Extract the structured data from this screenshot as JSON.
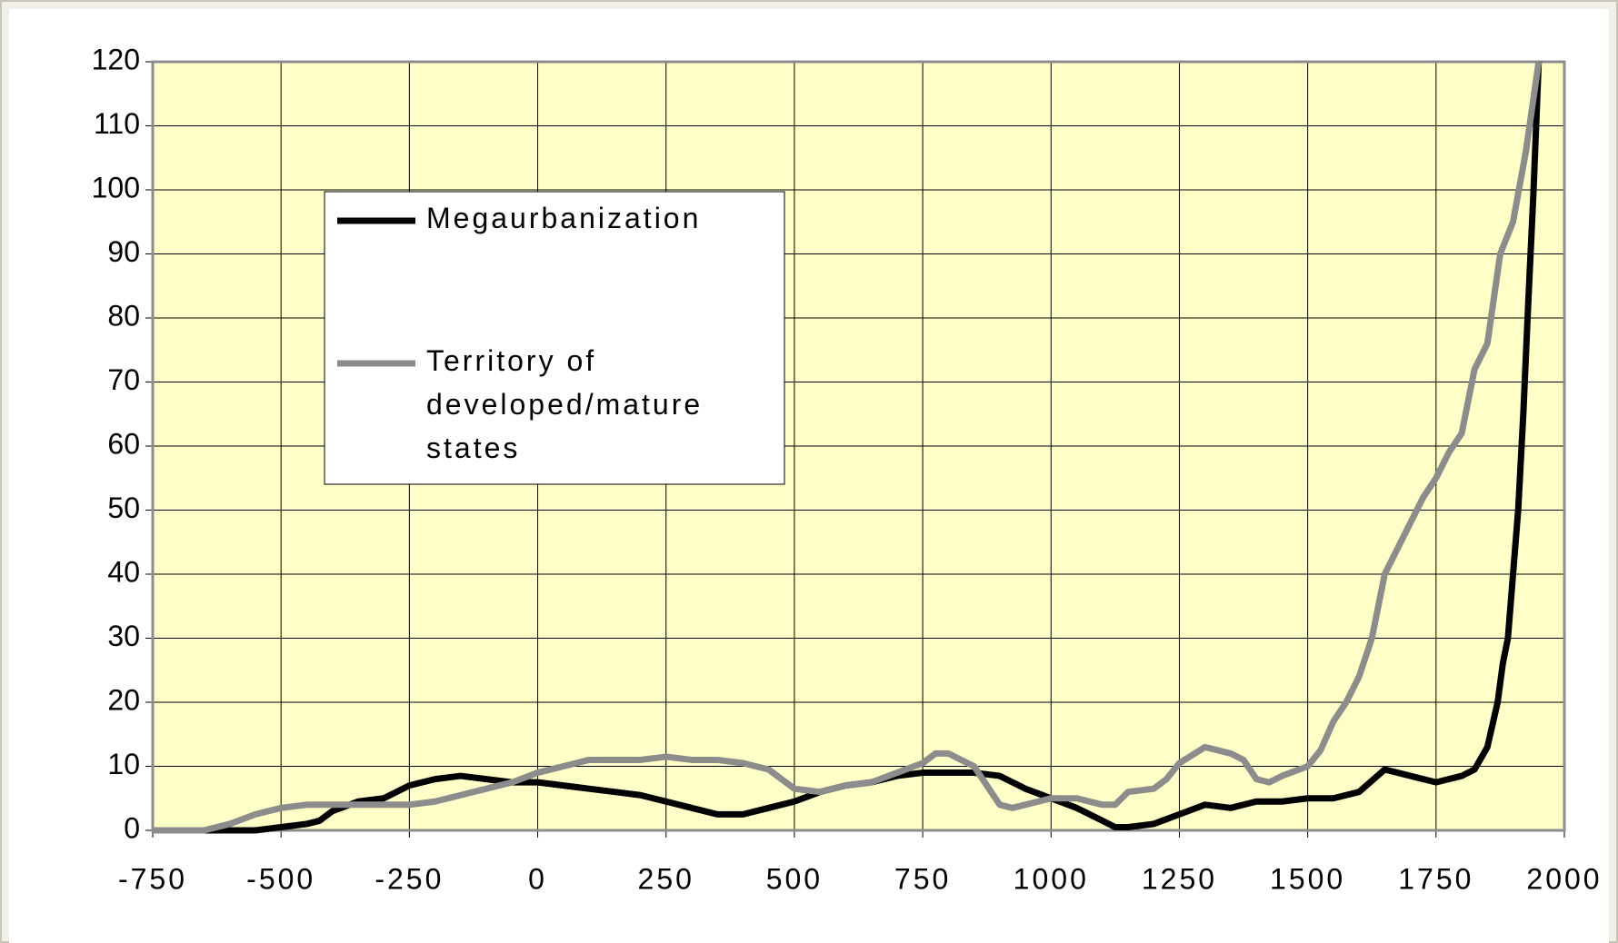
{
  "chart_data": {
    "type": "line",
    "legend": "upper left",
    "grid": true,
    "background": "#ffffc8",
    "xlim": [
      -750,
      2000
    ],
    "xticks": [
      -750,
      -500,
      -250,
      0,
      250,
      500,
      750,
      1000,
      1250,
      1500,
      1750,
      2000
    ],
    "ylim": [
      0,
      120
    ],
    "yticks": [
      0,
      10,
      20,
      30,
      40,
      50,
      60,
      70,
      80,
      90,
      100,
      110,
      120
    ],
    "series": [
      {
        "name": "Megaurbanization",
        "color": "#000000",
        "x": [
          -750,
          -650,
          -600,
          -550,
          -500,
          -450,
          -425,
          -400,
          -350,
          -300,
          -250,
          -200,
          -150,
          -100,
          -50,
          0,
          50,
          100,
          150,
          200,
          250,
          300,
          350,
          400,
          450,
          500,
          550,
          600,
          650,
          700,
          750,
          800,
          850,
          900,
          950,
          1000,
          1050,
          1100,
          1125,
          1150,
          1200,
          1250,
          1300,
          1350,
          1400,
          1450,
          1500,
          1550,
          1600,
          1650,
          1700,
          1750,
          1800,
          1825,
          1850,
          1870,
          1880,
          1890,
          1900,
          1910,
          1920,
          1930,
          1940,
          1950
        ],
        "values": [
          0,
          0,
          0,
          0,
          0.5,
          1,
          1.5,
          3,
          4.5,
          5,
          7,
          8,
          8.5,
          8,
          7.5,
          7.5,
          7,
          6.5,
          6,
          5.5,
          4.5,
          3.5,
          2.5,
          2.5,
          3.5,
          4.5,
          6,
          7,
          7.5,
          8.5,
          9,
          9,
          9,
          8.5,
          6.5,
          5,
          3.5,
          1.5,
          0.5,
          0.5,
          1,
          2.5,
          4,
          3.5,
          4.5,
          4.5,
          5,
          5,
          6,
          9.5,
          8.5,
          7.5,
          8.5,
          9.5,
          13,
          20,
          26,
          30,
          40,
          50,
          65,
          83,
          100,
          120
        ]
      },
      {
        "name": "Territory of developed/mature states",
        "color": "#8c8c8c",
        "x": [
          -750,
          -650,
          -600,
          -550,
          -500,
          -450,
          -400,
          -350,
          -300,
          -250,
          -200,
          -150,
          -100,
          -50,
          0,
          50,
          100,
          150,
          200,
          250,
          300,
          350,
          400,
          450,
          500,
          550,
          600,
          650,
          700,
          750,
          775,
          800,
          850,
          900,
          925,
          950,
          1000,
          1050,
          1100,
          1125,
          1150,
          1200,
          1225,
          1250,
          1300,
          1350,
          1375,
          1400,
          1425,
          1450,
          1500,
          1525,
          1550,
          1575,
          1600,
          1625,
          1650,
          1700,
          1725,
          1750,
          1775,
          1800,
          1825,
          1850,
          1875,
          1900,
          1925,
          1950
        ],
        "values": [
          0,
          0,
          1,
          2.5,
          3.5,
          4,
          4,
          4,
          4,
          4,
          4.5,
          5.5,
          6.5,
          7.5,
          9,
          10,
          11,
          11,
          11,
          11.5,
          11,
          11,
          10.5,
          9.5,
          6.5,
          6,
          7,
          7.5,
          9,
          10.5,
          12,
          12,
          10,
          4,
          3.5,
          4,
          5,
          5,
          4,
          4,
          6,
          6.5,
          8,
          10.5,
          13,
          12,
          11,
          8,
          7.5,
          8.5,
          10,
          12.5,
          17,
          20,
          24,
          30,
          40,
          48,
          52,
          55,
          59,
          62,
          72,
          76,
          90,
          95,
          106,
          120
        ]
      }
    ]
  }
}
